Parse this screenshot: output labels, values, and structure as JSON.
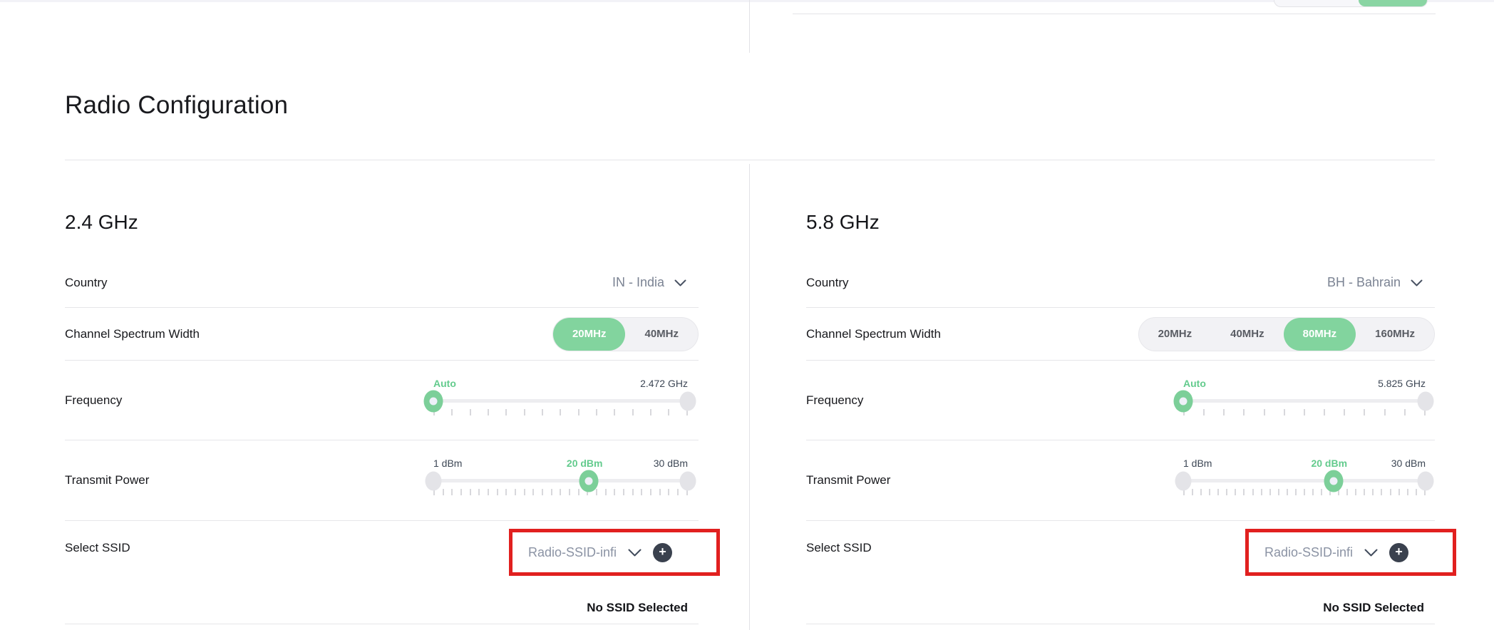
{
  "header": {
    "title": "Radio Configuration"
  },
  "colors": {
    "accent_green": "#82d49e",
    "callout_red": "#e1201f",
    "handle_gray": "#e4e4e8"
  },
  "columns": [
    {
      "heading": "2.4 GHz",
      "country": {
        "label": "Country",
        "value": "IN - India"
      },
      "spectrum": {
        "label": "Channel Spectrum Width",
        "options": [
          "20MHz",
          "40MHz"
        ],
        "selected": "20MHz"
      },
      "frequency": {
        "label": "Frequency",
        "slider": {
          "ticks": 15,
          "handles": [
            {
              "pct": 0,
              "green": true
            },
            {
              "pct": 100
            }
          ],
          "labels": [
            {
              "text": "Auto",
              "pct": 0,
              "green": true
            },
            {
              "text": "2.472 GHz",
              "pct": 100
            }
          ]
        }
      },
      "transmit_power": {
        "label": "Transmit Power",
        "slider": {
          "ticks": 29,
          "handles": [
            {
              "pct": 0
            },
            {
              "pct": 61,
              "green": true
            },
            {
              "pct": 100
            }
          ],
          "labels": [
            {
              "text": "1 dBm",
              "pct": 0
            },
            {
              "text": "20 dBm",
              "pct": 61,
              "green": true
            },
            {
              "text": "30 dBm",
              "pct": 100
            }
          ]
        }
      },
      "ssid": {
        "label": "Select SSID",
        "value": "Radio-SSID-infi",
        "status": "No SSID Selected"
      }
    },
    {
      "heading": "5.8 GHz",
      "country": {
        "label": "Country",
        "value": "BH - Bahrain"
      },
      "spectrum": {
        "label": "Channel Spectrum Width",
        "options": [
          "20MHz",
          "40MHz",
          "80MHz",
          "160MHz"
        ],
        "selected": "80MHz"
      },
      "frequency": {
        "label": "Frequency",
        "slider": {
          "ticks": 13,
          "handles": [
            {
              "pct": 0,
              "green": true
            },
            {
              "pct": 100
            }
          ],
          "labels": [
            {
              "text": "Auto",
              "pct": 0,
              "green": true
            },
            {
              "text": "5.825 GHz",
              "pct": 100
            }
          ]
        }
      },
      "transmit_power": {
        "label": "Transmit Power",
        "slider": {
          "ticks": 29,
          "handles": [
            {
              "pct": 0
            },
            {
              "pct": 62,
              "green": true
            },
            {
              "pct": 100
            }
          ],
          "labels": [
            {
              "text": "1 dBm",
              "pct": 0
            },
            {
              "text": "20 dBm",
              "pct": 62,
              "green": true
            },
            {
              "text": "30 dBm",
              "pct": 100
            }
          ]
        }
      },
      "ssid": {
        "label": "Select SSID",
        "value": "Radio-SSID-infi",
        "status": "No SSID Selected"
      }
    }
  ]
}
